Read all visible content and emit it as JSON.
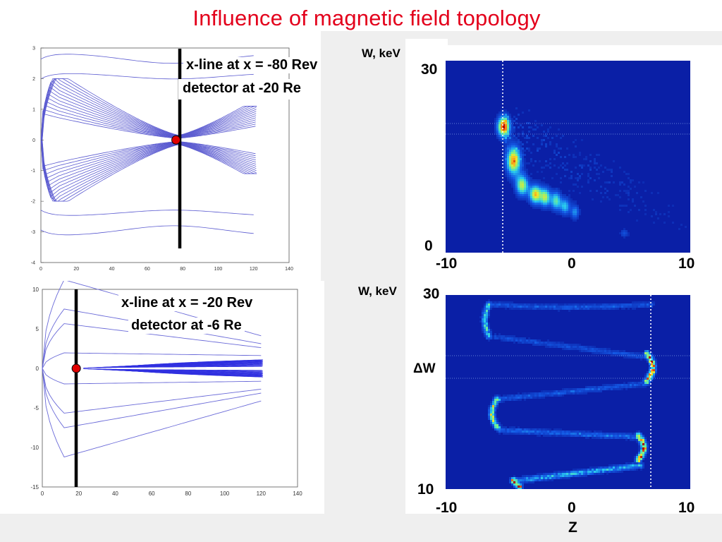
{
  "title": "Influence of magnetic field topology",
  "plots": {
    "top_left": {
      "x_ticks": [
        "0",
        "20",
        "40",
        "60",
        "80",
        "100",
        "120",
        "140"
      ],
      "y_ticks": [
        "3",
        "2",
        "1",
        "0",
        "-1",
        "-2",
        "-3",
        "-4"
      ],
      "annotation_line1": "x-line at x = -80 Rev",
      "annotation_line2": "detector at -20 Re",
      "marker_x": 77,
      "marker_y": 0
    },
    "bottom_left": {
      "x_ticks": [
        "0",
        "20",
        "40",
        "60",
        "80",
        "100",
        "120",
        "140"
      ],
      "y_ticks": [
        "10",
        "5",
        "0",
        "-5",
        "-10",
        "-15"
      ],
      "annotation_line1": "x-line at x = -20 Rev",
      "annotation_line2": "detector at -6 Re",
      "marker_x": 19,
      "marker_y": 0
    },
    "top_right": {
      "ylabel": "W, keV",
      "y_top": "30",
      "y_bottom": "0",
      "x_ticks": [
        "-10",
        "0",
        "10"
      ]
    },
    "bottom_right": {
      "ylabel": "W, keV",
      "y_top": "30",
      "y_bottom": "10",
      "delta_label": "ΔW",
      "x_ticks": [
        "-10",
        "0",
        "10"
      ],
      "xlabel": "Z"
    }
  },
  "colors": {
    "title": "#e3001b",
    "field_lines": "#5a5ad0",
    "heatmap_bg": "#0a1fa6",
    "marker": "#e00000"
  }
}
